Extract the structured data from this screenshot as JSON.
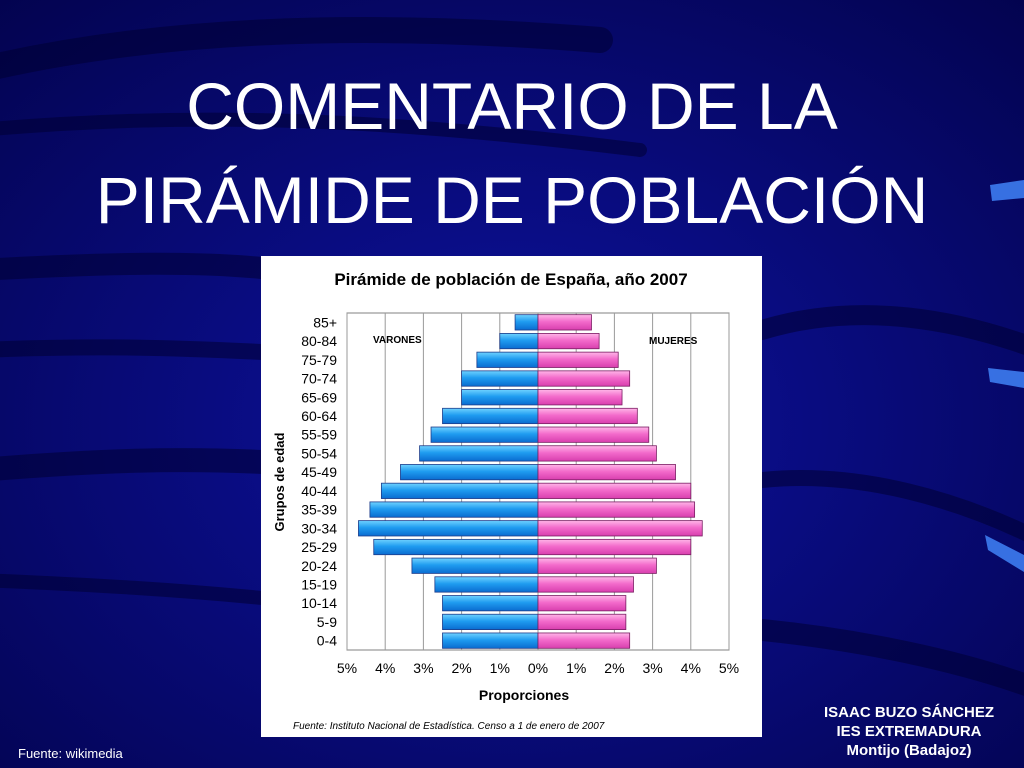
{
  "slide": {
    "title_line1": "COMENTARIO DE LA",
    "title_line2": "PIRÁMIDE DE POBLACIÓN",
    "source": "Fuente: wikimedia",
    "author": "ISAAC BUZO SÁNCHEZ",
    "school": "IES EXTREMADURA",
    "town": "Montijo (Badajoz)",
    "colors": {
      "background": "#06066e",
      "text": "#ffffff"
    }
  },
  "chart_data": {
    "type": "bar",
    "title": "Pirámide de población de España, año 2007",
    "xlabel": "Proporciones",
    "ylabel": "Grupos de edad",
    "source_note": "Fuente: Instituto Nacional de Estadística. Censo a 1 de enero de 2007",
    "xlim": [
      -5,
      5
    ],
    "x_ticks": [
      "5%",
      "4%",
      "3%",
      "2%",
      "1%",
      "0%",
      "1%",
      "2%",
      "3%",
      "4%",
      "5%"
    ],
    "grid": true,
    "categories": [
      "85+",
      "80-84",
      "75-79",
      "70-74",
      "65-69",
      "60-64",
      "55-59",
      "50-54",
      "45-49",
      "40-44",
      "35-39",
      "30-34",
      "25-29",
      "20-24",
      "15-19",
      "10-14",
      "5-9",
      "0-4"
    ],
    "series": [
      {
        "name": "VARONES",
        "color": "#1f9cf0",
        "values": [
          0.6,
          1.0,
          1.6,
          2.0,
          2.0,
          2.5,
          2.8,
          3.1,
          3.6,
          4.1,
          4.4,
          4.7,
          4.3,
          3.3,
          2.7,
          2.5,
          2.5,
          2.5
        ]
      },
      {
        "name": "MUJERES",
        "color": "#f36bcb",
        "values": [
          1.4,
          1.6,
          2.1,
          2.4,
          2.2,
          2.6,
          2.9,
          3.1,
          3.6,
          4.0,
          4.1,
          4.3,
          4.0,
          3.1,
          2.5,
          2.3,
          2.3,
          2.4
        ]
      }
    ]
  }
}
